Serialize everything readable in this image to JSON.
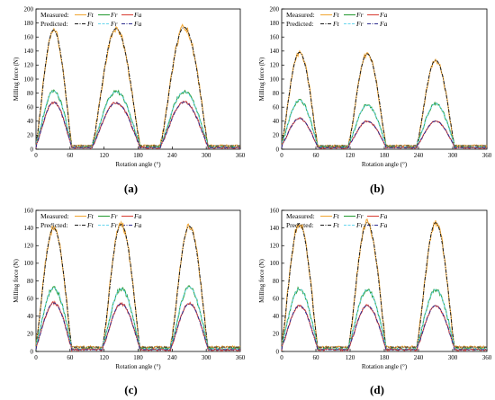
{
  "panels": [
    {
      "label": "(a)",
      "peaks": {
        "ft": [
          170,
          172,
          174
        ],
        "fr": [
          83,
          82,
          82
        ],
        "fa": [
          67,
          66,
          67
        ]
      }
    },
    {
      "label": "(b)",
      "peaks": {
        "ft": [
          138,
          136,
          127
        ],
        "fr": [
          70,
          63,
          65
        ],
        "fa": [
          44,
          40,
          40
        ]
      }
    },
    {
      "label": "(c)",
      "peaks": {
        "ft": [
          140,
          144,
          142
        ],
        "fr": [
          72,
          71,
          73
        ],
        "fa": [
          55,
          54,
          54
        ]
      }
    },
    {
      "label": "(d)",
      "peaks": {
        "ft": [
          145,
          146,
          146
        ],
        "fr": [
          71,
          70,
          70
        ],
        "fa": [
          52,
          52,
          52
        ]
      }
    }
  ],
  "legend": {
    "measured": "Measured:",
    "predicted": "Predicted:",
    "ft": "Ft",
    "fr": "Fr",
    "fa": "Fa"
  },
  "axes": {
    "xlabel": "Rotation angle (°)",
    "ylabel": "Milling force (N)"
  },
  "colors": {
    "ft_measured": "#f2a93b",
    "fr_measured": "#2e9e3a",
    "fa_measured": "#d9453b",
    "ft_predicted": "#1a1a1a",
    "fr_predicted": "#66d6ee",
    "fa_predicted": "#2d2d8f"
  },
  "chart_data": [
    {
      "type": "line",
      "panel": "(a)",
      "xlabel": "Rotation angle (°)",
      "ylabel": "Milling force (N)",
      "xlim": [
        0,
        360
      ],
      "ylim": [
        0,
        200
      ],
      "xticks": [
        0,
        60,
        120,
        180,
        240,
        300,
        360
      ],
      "yticks": [
        0,
        20,
        40,
        60,
        80,
        100,
        120,
        140,
        160,
        180,
        200
      ],
      "series": [
        {
          "name": "Ft",
          "peaks": [
            170,
            172,
            174
          ]
        },
        {
          "name": "Fr",
          "peaks": [
            83,
            82,
            82
          ]
        },
        {
          "name": "Fa",
          "peaks": [
            67,
            66,
            67
          ]
        }
      ],
      "cut_windows_deg": [
        [
          0,
          62
        ],
        [
          100,
          182
        ],
        [
          220,
          302
        ]
      ]
    },
    {
      "type": "line",
      "panel": "(b)",
      "xlabel": "Rotation angle (°)",
      "ylabel": "Milling force (N)",
      "xlim": [
        0,
        360
      ],
      "ylim": [
        0,
        200
      ],
      "xticks": [
        0,
        60,
        120,
        180,
        240,
        300,
        360
      ],
      "yticks": [
        0,
        20,
        40,
        60,
        80,
        100,
        120,
        140,
        160,
        180,
        200
      ],
      "series": [
        {
          "name": "Ft",
          "peaks": [
            138,
            136,
            127
          ]
        },
        {
          "name": "Fr",
          "peaks": [
            70,
            63,
            65
          ]
        },
        {
          "name": "Fa",
          "peaks": [
            44,
            40,
            40
          ]
        }
      ],
      "cut_windows_deg": [
        [
          0,
          62
        ],
        [
          118,
          182
        ],
        [
          238,
          302
        ]
      ]
    },
    {
      "type": "line",
      "panel": "(c)",
      "xlabel": "Rotation angle (°)",
      "ylabel": "Milling force (N)",
      "xlim": [
        0,
        360
      ],
      "ylim": [
        0,
        160
      ],
      "xticks": [
        0,
        60,
        120,
        180,
        240,
        300,
        360
      ],
      "yticks": [
        0,
        20,
        40,
        60,
        80,
        100,
        120,
        140,
        160
      ],
      "series": [
        {
          "name": "Ft",
          "peaks": [
            140,
            144,
            142
          ]
        },
        {
          "name": "Fr",
          "peaks": [
            72,
            71,
            73
          ]
        },
        {
          "name": "Fa",
          "peaks": [
            55,
            54,
            54
          ]
        }
      ],
      "cut_windows_deg": [
        [
          0,
          62
        ],
        [
          118,
          182
        ],
        [
          238,
          302
        ]
      ]
    },
    {
      "type": "line",
      "panel": "(d)",
      "xlabel": "Rotation angle (°)",
      "ylabel": "Milling force (N)",
      "xlim": [
        0,
        360
      ],
      "ylim": [
        0,
        160
      ],
      "xticks": [
        0,
        60,
        120,
        180,
        240,
        300,
        360
      ],
      "yticks": [
        0,
        20,
        40,
        60,
        80,
        100,
        120,
        140,
        160
      ],
      "series": [
        {
          "name": "Ft",
          "peaks": [
            145,
            146,
            146
          ]
        },
        {
          "name": "Fr",
          "peaks": [
            71,
            70,
            70
          ]
        },
        {
          "name": "Fa",
          "peaks": [
            52,
            52,
            52
          ]
        }
      ],
      "cut_windows_deg": [
        [
          0,
          62
        ],
        [
          118,
          182
        ],
        [
          238,
          302
        ]
      ]
    }
  ]
}
